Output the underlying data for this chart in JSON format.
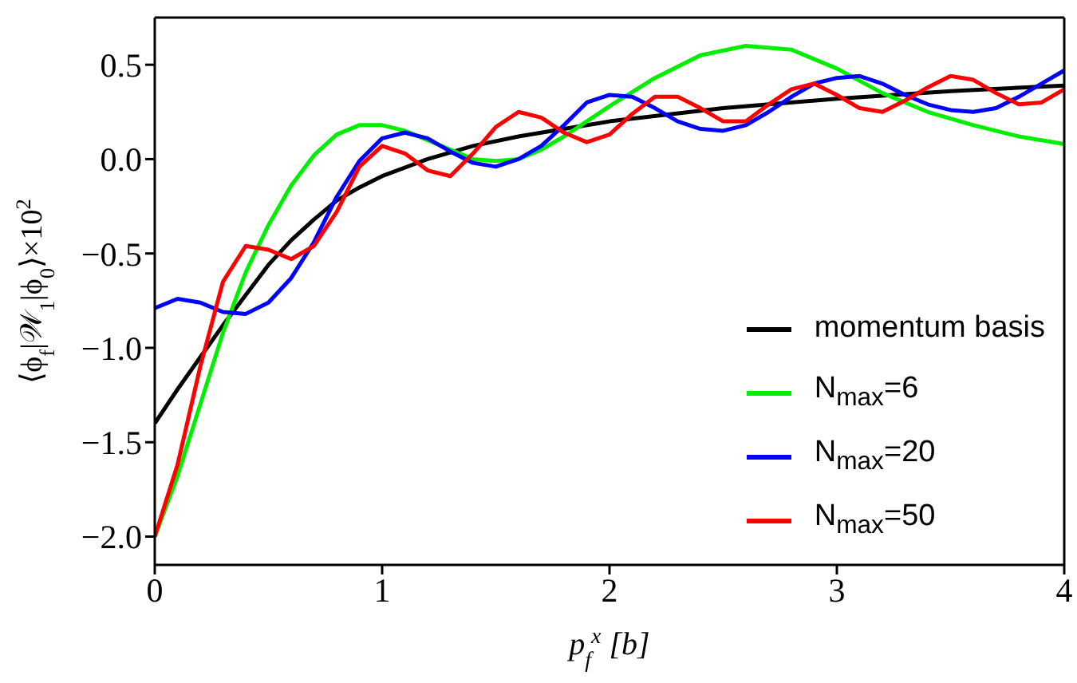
{
  "chart_data": {
    "type": "line",
    "xlabel": "p$_{f}$$^{x}$ [b]",
    "ylabel": "⟨ϕ$_{f}$|𝒲$_{1}$|ϕ$_{0}$⟩×10$^{2}$",
    "xlim": [
      0,
      4
    ],
    "xticks": [
      0,
      1,
      2,
      3,
      4
    ],
    "ylim": [
      -2.15,
      0.75
    ],
    "yticks": [
      {
        "value": -2,
        "label": "−2.0"
      },
      {
        "value": -1.5,
        "label": "−1.5"
      },
      {
        "value": -1,
        "label": "−1.0"
      },
      {
        "value": -0.5,
        "label": "−0.5"
      },
      {
        "value": 0,
        "label": "0.0"
      },
      0.5
    ],
    "legend": "bottom right",
    "grid": false,
    "marker": "none",
    "line_style": "solid",
    "series": [
      {
        "name": "momentum basis",
        "color": "#000000",
        "x": [
          0,
          0.1,
          0.2,
          0.3,
          0.4,
          0.5,
          0.6,
          0.7,
          0.8,
          0.9,
          1,
          1.2,
          1.4,
          1.6,
          1.8,
          2,
          2.5,
          3,
          3.5,
          4
        ],
        "values": [
          -1.4,
          -1.22,
          -1.05,
          -0.88,
          -0.72,
          -0.56,
          -0.43,
          -0.32,
          -0.22,
          -0.15,
          -0.09,
          0,
          0.07,
          0.12,
          0.16,
          0.2,
          0.27,
          0.32,
          0.36,
          0.39
        ]
      },
      {
        "name": "N$_{max}$=6",
        "color": "#00ee00",
        "x": [
          0,
          0.1,
          0.2,
          0.3,
          0.4,
          0.5,
          0.6,
          0.7,
          0.8,
          0.9,
          1,
          1.1,
          1.2,
          1.3,
          1.4,
          1.5,
          1.6,
          1.7,
          1.8,
          2,
          2.2,
          2.4,
          2.6,
          2.8,
          3,
          3.2,
          3.4,
          3.6,
          3.8,
          4
        ],
        "values": [
          -2,
          -1.68,
          -1.3,
          -0.92,
          -0.6,
          -0.35,
          -0.14,
          0.02,
          0.13,
          0.18,
          0.18,
          0.15,
          0.1,
          0.05,
          0,
          -0.01,
          0,
          0.05,
          0.12,
          0.28,
          0.43,
          0.55,
          0.6,
          0.58,
          0.48,
          0.35,
          0.25,
          0.18,
          0.12,
          0.08
        ]
      },
      {
        "name": "N$_{max}$=20",
        "color": "#0000ff",
        "x": [
          0,
          0.1,
          0.2,
          0.3,
          0.4,
          0.5,
          0.6,
          0.7,
          0.8,
          0.9,
          1,
          1.1,
          1.2,
          1.3,
          1.4,
          1.5,
          1.6,
          1.7,
          1.8,
          1.9,
          2,
          2.1,
          2.2,
          2.3,
          2.4,
          2.5,
          2.6,
          2.7,
          2.8,
          2.9,
          3,
          3.1,
          3.2,
          3.3,
          3.4,
          3.5,
          3.6,
          3.7,
          3.8,
          3.9,
          4
        ],
        "values": [
          -0.79,
          -0.74,
          -0.76,
          -0.81,
          -0.82,
          -0.76,
          -0.63,
          -0.44,
          -0.2,
          -0.01,
          0.11,
          0.14,
          0.11,
          0.04,
          -0.02,
          -0.04,
          0,
          0.07,
          0.18,
          0.3,
          0.34,
          0.33,
          0.27,
          0.2,
          0.16,
          0.15,
          0.18,
          0.25,
          0.33,
          0.4,
          0.43,
          0.44,
          0.4,
          0.34,
          0.29,
          0.26,
          0.25,
          0.27,
          0.33,
          0.4,
          0.47
        ]
      },
      {
        "name": "N$_{max}$=50",
        "color": "#ff0000",
        "x": [
          0,
          0.1,
          0.2,
          0.3,
          0.4,
          0.5,
          0.6,
          0.7,
          0.8,
          0.9,
          1,
          1.1,
          1.2,
          1.3,
          1.4,
          1.5,
          1.6,
          1.7,
          1.8,
          1.9,
          2,
          2.1,
          2.2,
          2.3,
          2.4,
          2.5,
          2.6,
          2.7,
          2.8,
          2.9,
          3,
          3.1,
          3.2,
          3.3,
          3.4,
          3.5,
          3.6,
          3.7,
          3.8,
          3.9,
          4
        ],
        "values": [
          -2,
          -1.62,
          -1.1,
          -0.65,
          -0.46,
          -0.48,
          -0.53,
          -0.46,
          -0.28,
          -0.04,
          0.07,
          0.03,
          -0.06,
          -0.09,
          0.03,
          0.17,
          0.25,
          0.22,
          0.14,
          0.09,
          0.13,
          0.24,
          0.33,
          0.33,
          0.27,
          0.2,
          0.2,
          0.29,
          0.37,
          0.4,
          0.34,
          0.27,
          0.25,
          0.31,
          0.38,
          0.44,
          0.42,
          0.35,
          0.29,
          0.3,
          0.37
        ]
      }
    ]
  }
}
